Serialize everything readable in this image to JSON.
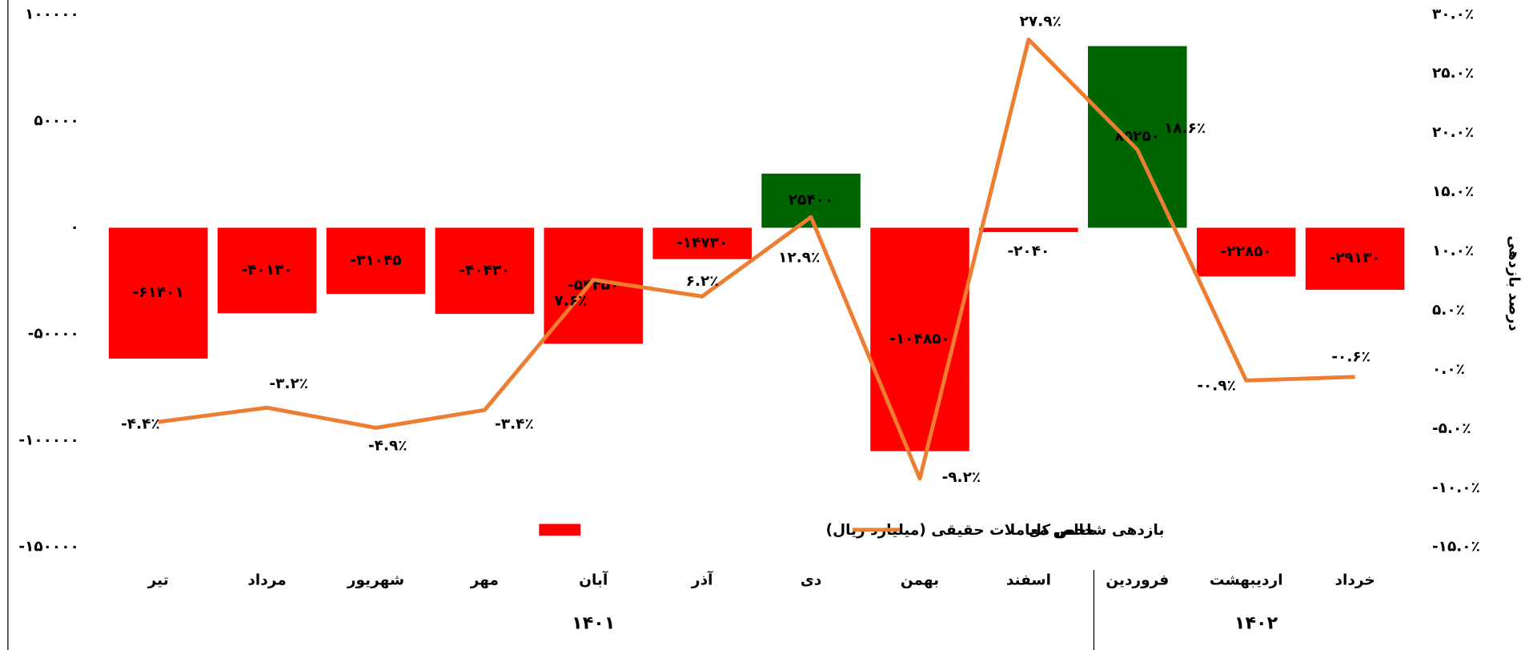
{
  "chart_data": {
    "type": "bar_line",
    "categories": [
      "تیر",
      "مرداد",
      "شهریور",
      "مهر",
      "آبان",
      "آذر",
      "دی",
      "بهمن",
      "اسفند",
      "فروردین",
      "اردیبهشت",
      "خرداد"
    ],
    "groups": [
      {
        "label": "۱۴۰۱",
        "span": [
          0,
          8
        ]
      },
      {
        "label": "۱۴۰۲",
        "span": [
          9,
          11
        ]
      }
    ],
    "series": [
      {
        "name": "خالص معاملات حقیقی (میلیارد ریال)",
        "type": "bar",
        "color": "#ff0000",
        "colors": [
          "#ff0000",
          "#ff0000",
          "#ff0000",
          "#ff0000",
          "#ff0000",
          "#ff0000",
          "#006400",
          "#ff0000",
          "#ff0000",
          "#006400",
          "#ff0000",
          "#ff0000"
        ],
        "values": [
          -61401,
          -40130,
          -31045,
          -40430,
          -54450,
          -14730,
          25400,
          -104850,
          -2040,
          85250,
          -22850,
          -29130
        ],
        "value_labels": [
          "-۶۱۴۰۱",
          "-۴۰۱۳۰",
          "-۳۱۰۴۵",
          "-۴۰۴۳۰",
          "-۵۴۴۵۰",
          "-۱۴۷۳۰",
          "۲۵۴۰۰",
          "-۱۰۴۸۵۰",
          "-۲۰۴۰",
          "۸۵۲۵۰",
          "-۲۲۸۵۰",
          "-۲۹۱۳۰"
        ]
      },
      {
        "name": "بازدهی شاخص کل",
        "type": "line",
        "axis": "y2",
        "color": "#ed7d31",
        "values": [
          -4.4,
          -3.2,
          -4.9,
          -3.4,
          7.6,
          6.2,
          12.9,
          -9.2,
          27.9,
          18.6,
          -0.9,
          -0.6
        ],
        "value_labels": [
          "-۴.۴٪",
          "-۳.۲٪",
          "-۴.۹٪",
          "-۳.۴٪",
          "۷.۶٪",
          "۶.۲٪",
          "۱۲.۹٪",
          "-۹.۲٪",
          "۲۷.۹٪",
          "۱۸.۶٪",
          "-۰.۹٪",
          "-۰.۶٪"
        ]
      }
    ],
    "y2_label": "درصد بازدهی",
    "ylim": [
      -150000,
      100000
    ],
    "yticks": [
      {
        "value": -150000,
        "label": "-۱۵۰۰۰۰"
      },
      {
        "value": -100000,
        "label": "-۱۰۰۰۰۰"
      },
      {
        "value": -50000,
        "label": "-۵۰۰۰۰"
      },
      {
        "value": 0,
        "label": "۰"
      },
      {
        "value": 50000,
        "label": "۵۰۰۰۰"
      },
      {
        "value": 100000,
        "label": "۱۰۰۰۰۰"
      }
    ],
    "y2lim": [
      -15,
      30
    ],
    "y2ticks": [
      {
        "value": -15,
        "label": "-۱۵.۰٪"
      },
      {
        "value": -10,
        "label": "-۱۰.۰٪"
      },
      {
        "value": -5,
        "label": "-۵.۰٪"
      },
      {
        "value": 0,
        "label": "۰.۰٪"
      },
      {
        "value": 5,
        "label": "۵.۰٪"
      },
      {
        "value": 10,
        "label": "۱۰.۰٪"
      },
      {
        "value": 15,
        "label": "۱۵.۰٪"
      },
      {
        "value": 20,
        "label": "۲۰.۰٪"
      },
      {
        "value": 25,
        "label": "۲۵.۰٪"
      },
      {
        "value": 30,
        "label": "۳۰.۰٪"
      }
    ],
    "legend": "bottom"
  }
}
